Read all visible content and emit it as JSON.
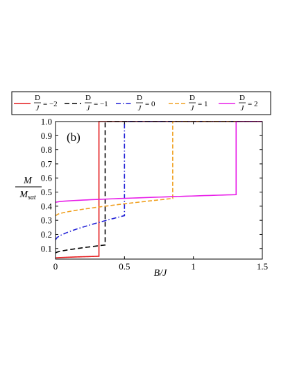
{
  "chart_data": {
    "type": "line",
    "panel_label": "(b)",
    "xlabel": {
      "num": "B",
      "den": "J"
    },
    "ylabel": {
      "num": "M",
      "den": "M",
      "den_sub": "sat"
    },
    "xlim": [
      0,
      1.5
    ],
    "ylim": [
      0.025,
      1.0
    ],
    "xticks": [
      0,
      0.5,
      1,
      1.5
    ],
    "xtick_labels": [
      "0",
      "0.5",
      "1",
      "1.5"
    ],
    "yticks": [
      0.1,
      0.2,
      0.3,
      0.4,
      0.5,
      0.6,
      0.7,
      0.8,
      0.9,
      1.0
    ],
    "ytick_labels": [
      "0.1",
      "0.2",
      "0.3",
      "0.4",
      "0.5",
      "0.6",
      "0.7",
      "0.8",
      "0.9",
      "1.0"
    ],
    "legend_position": "top",
    "legend": [
      {
        "frac_num": "D",
        "frac_den": "J",
        "eq": "= −2",
        "color": "#e41a1c",
        "dash": ""
      },
      {
        "frac_num": "D",
        "frac_den": "J",
        "eq": "= −1",
        "color": "#000000",
        "dash": "7,4"
      },
      {
        "frac_num": "D",
        "frac_den": "J",
        "eq": "= 0",
        "color": "#1f1fd6",
        "dash": "7,3,1.5,3"
      },
      {
        "frac_num": "D",
        "frac_den": "J",
        "eq": "= 1",
        "color": "#f0a020",
        "dash": "6,3"
      },
      {
        "frac_num": "D",
        "frac_den": "J",
        "eq": "= 2",
        "color": "#e81ee8",
        "dash": ""
      }
    ],
    "series": [
      {
        "color": "#e41a1c",
        "dash": "",
        "jump_x": 0.315,
        "low": {
          "x0": 0,
          "y0": 0.033,
          "x1": 0.315,
          "y1": 0.045
        }
      },
      {
        "color": "#000000",
        "dash": "7,4",
        "jump_x": 0.36,
        "low": {
          "x0": 0,
          "y0": 0.068,
          "x1": 0.36,
          "y1": 0.125
        }
      },
      {
        "color": "#1f1fd6",
        "dash": "7,3,1.5,3",
        "jump_x": 0.5,
        "low": {
          "x0": 0,
          "y0": 0.162,
          "x1": 0.5,
          "y1": 0.333
        }
      },
      {
        "color": "#f0a020",
        "dash": "6,3",
        "jump_x": 0.85,
        "low": {
          "x0": 0,
          "y0": 0.333,
          "x1": 0.85,
          "y1": 0.455
        }
      },
      {
        "color": "#e81ee8",
        "dash": "",
        "jump_x": 1.31,
        "low": {
          "x0": 0,
          "y0": 0.428,
          "x1": 1.31,
          "y1": 0.482
        }
      }
    ]
  }
}
